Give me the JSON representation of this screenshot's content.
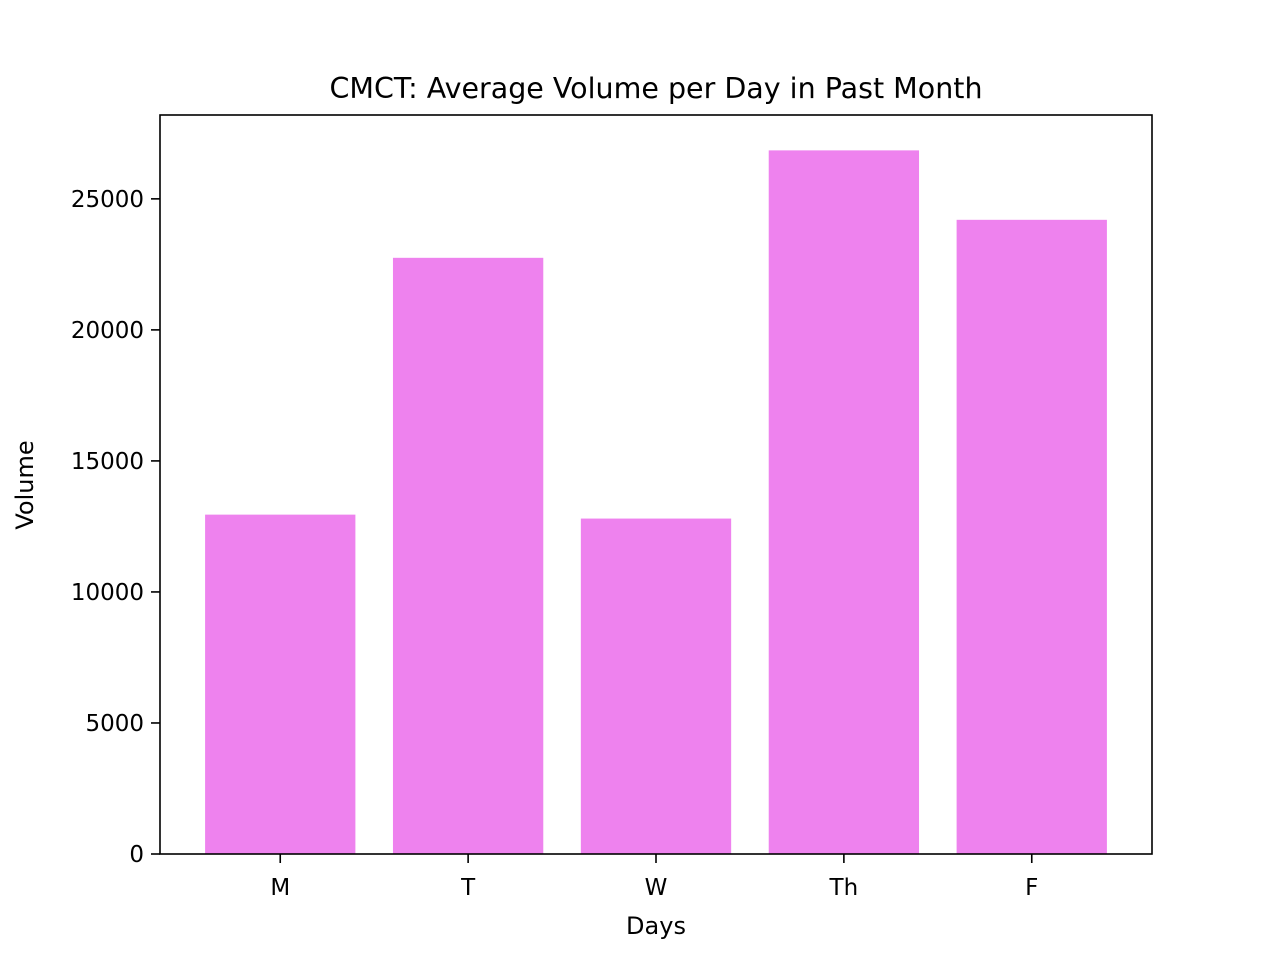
{
  "chart_data": {
    "type": "bar",
    "title": "CMCT: Average Volume per Day in Past Month",
    "xlabel": "Days",
    "ylabel": "Volume",
    "categories": [
      "M",
      "T",
      "W",
      "Th",
      "F"
    ],
    "values": [
      12950,
      22750,
      12800,
      26850,
      24200
    ],
    "ylim": [
      0,
      28200
    ],
    "yticks": [
      0,
      5000,
      10000,
      15000,
      20000,
      25000
    ],
    "grid": false,
    "legend": "none",
    "bar_color": "#ee82ee",
    "axis_color": "#000000"
  }
}
